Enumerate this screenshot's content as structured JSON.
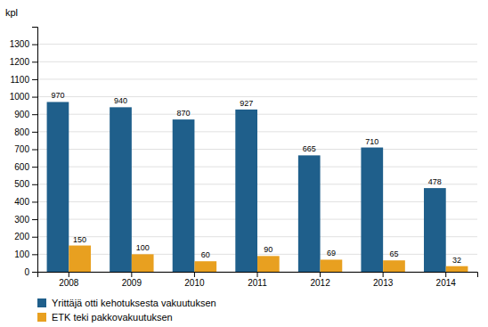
{
  "chart_data": {
    "type": "bar",
    "ylabel": "kpl",
    "categories": [
      "2008",
      "2009",
      "2010",
      "2011",
      "2012",
      "2013",
      "2014"
    ],
    "series": [
      {
        "name": "Yrittäjä otti kehotuksesta vakuutuksen",
        "color": "#1F5F8B",
        "values": [
          970,
          940,
          870,
          927,
          665,
          710,
          478
        ]
      },
      {
        "name": "ETK teki pakkovakuutuksen",
        "color": "#E8A020",
        "values": [
          150,
          100,
          60,
          90,
          69,
          65,
          32
        ]
      }
    ],
    "ylim": [
      0,
      1400
    ],
    "yticks": [
      0,
      100,
      200,
      300,
      400,
      500,
      600,
      700,
      800,
      900,
      1000,
      1100,
      1200,
      1300
    ],
    "grid": true,
    "data_labels": true,
    "legend": "bottom"
  }
}
